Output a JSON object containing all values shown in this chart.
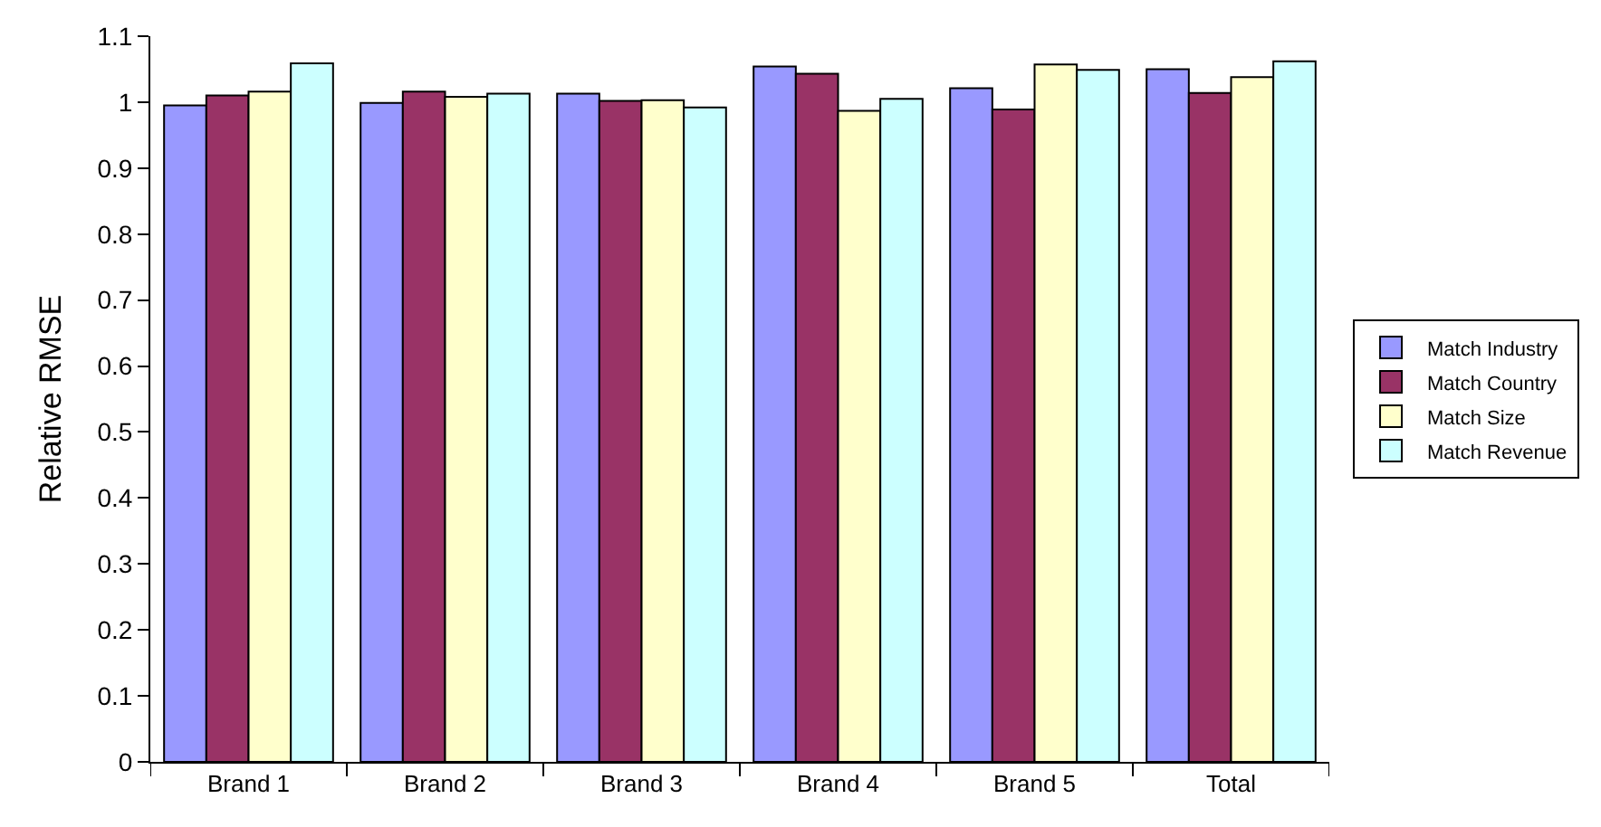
{
  "chart_data": {
    "type": "bar",
    "ylabel": "Relative RMSE",
    "categories": [
      "Brand 1",
      "Brand 2",
      "Brand 3",
      "Brand 4",
      "Brand 5",
      "Total"
    ],
    "series": [
      {
        "name": "Match Industry",
        "color": "#9999ff",
        "values": [
          0.995,
          0.999,
          1.013,
          1.054,
          1.021,
          1.05
        ]
      },
      {
        "name": "Match Country",
        "color": "#993366",
        "values": [
          1.01,
          1.016,
          1.002,
          1.043,
          0.989,
          1.014
        ]
      },
      {
        "name": "Match Size",
        "color": "#ffffcc",
        "values": [
          1.016,
          1.008,
          1.003,
          0.987,
          1.057,
          1.038
        ]
      },
      {
        "name": "Match Revenue",
        "color": "#ccffff",
        "values": [
          1.059,
          1.013,
          0.992,
          1.005,
          1.049,
          1.062
        ]
      }
    ],
    "ylim": [
      0,
      1.1
    ],
    "yticks": [
      0,
      0.1,
      0.2,
      0.3,
      0.4,
      0.5,
      0.6,
      0.7,
      0.8,
      0.9,
      1,
      1.1
    ],
    "grid": false,
    "legend": "right"
  }
}
